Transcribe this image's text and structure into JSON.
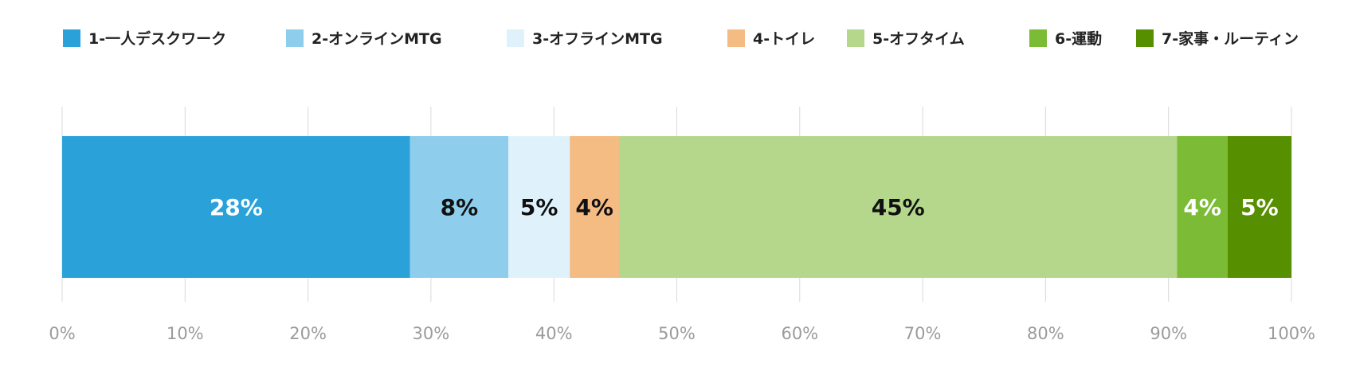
{
  "chart_data": {
    "type": "bar",
    "orientation": "horizontal",
    "stacked": true,
    "normalized": true,
    "title": "",
    "xlabel": "",
    "ylabel": "",
    "xlim": [
      0,
      100
    ],
    "x_ticks": [
      "0%",
      "10%",
      "20%",
      "30%",
      "40%",
      "50%",
      "60%",
      "70%",
      "80%",
      "90%",
      "100%"
    ],
    "grid": "vertical",
    "legend_placement": "top",
    "series": [
      {
        "name": "1-一人デスクワーク",
        "value": 28.3,
        "label": "28%",
        "color": "#2aa2d9",
        "label_color": "#ffffff"
      },
      {
        "name": "2-オンラインMTG",
        "value": 8.0,
        "label": "8%",
        "color": "#8ecdec",
        "label_color": "#111111"
      },
      {
        "name": "3-オフラインMTG",
        "value": 5.0,
        "label": "5%",
        "color": "#dff2fc",
        "label_color": "#111111"
      },
      {
        "name": "4-トイレ",
        "value": 4.0,
        "label": "4%",
        "color": "#f4bb82",
        "label_color": "#111111"
      },
      {
        "name": "5-オフタイム",
        "value": 45.4,
        "label": "45%",
        "color": "#b4d78c",
        "label_color": "#111111"
      },
      {
        "name": "6-運動",
        "value": 4.1,
        "label": "4%",
        "color": "#7bbb36",
        "label_color": "#ffffff"
      },
      {
        "name": "7-家事・ルーティン",
        "value": 5.2,
        "label": "5%",
        "color": "#568f00",
        "label_color": "#ffffff"
      }
    ]
  }
}
